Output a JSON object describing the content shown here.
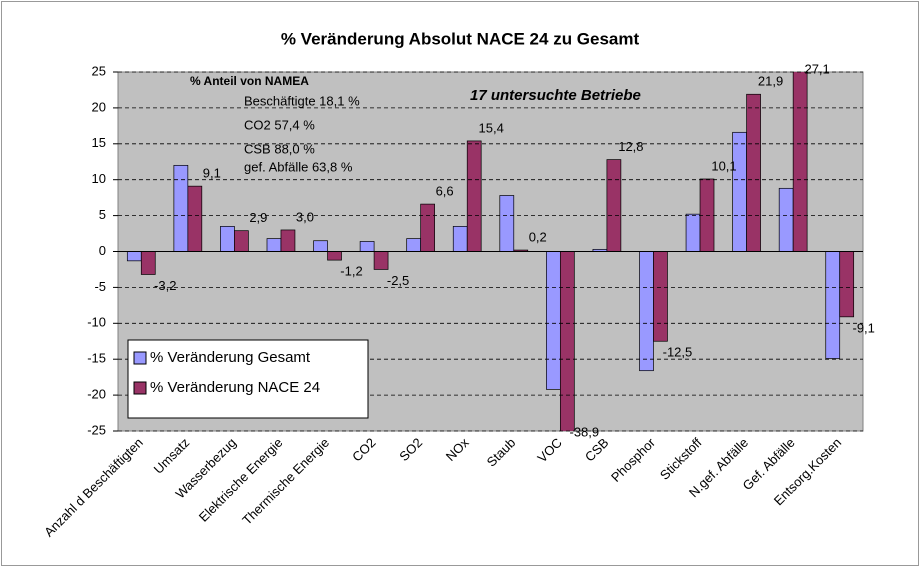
{
  "chart_data": {
    "type": "bar",
    "title": "% Veränderung Absolut NACE 24 zu Gesamt",
    "categories": [
      "Anzahl d Beschäftigten",
      "Umsatz",
      "Wasserbezug",
      "Elektrische Energie",
      "Thermische Energie",
      "CO2",
      "SO2",
      "NOx",
      "Staub",
      "VOC",
      "CSB",
      "Phosphor",
      "Stickstoff",
      "N.gef. Abfälle",
      "Gef. Abfälle",
      "Entsorg.Kosten"
    ],
    "series": [
      {
        "name": "% Veränderung Gesamt",
        "color": "#9999ff",
        "values": [
          -1.3,
          12.0,
          3.5,
          1.8,
          1.5,
          1.4,
          1.8,
          3.5,
          7.8,
          -19.2,
          0.3,
          -16.6,
          5.2,
          16.6,
          8.8,
          -14.9
        ]
      },
      {
        "name": "% Veränderung NACE 24",
        "color": "#993366",
        "values": [
          -3.2,
          9.1,
          2.9,
          3.0,
          -1.2,
          -2.5,
          6.6,
          15.4,
          0.2,
          -38.9,
          12.8,
          -12.5,
          10.1,
          21.9,
          27.1,
          -9.1
        ],
        "value_labels": [
          "-3,2",
          "9,1",
          "2,9",
          "3,0",
          "-1,2",
          "-2,5",
          "6,6",
          "15,4",
          "0,2",
          "-38,9",
          "12,8",
          "-12,5",
          "10,1",
          "21,9",
          "27,1",
          "-9,1"
        ]
      }
    ],
    "ylim": [
      -25,
      25
    ],
    "yticks": [
      -25,
      -20,
      -15,
      -10,
      -5,
      0,
      5,
      10,
      15,
      20,
      25
    ],
    "grid": true,
    "annotations": [
      "% Anteil von NAMEA",
      "Beschäftigte 18,1 %",
      "CO2 57,4 %",
      "CSB 88,0 %",
      "gef. Abfälle 63,8 %",
      "17 untersuchte Betriebe"
    ],
    "legend": "lower left"
  }
}
